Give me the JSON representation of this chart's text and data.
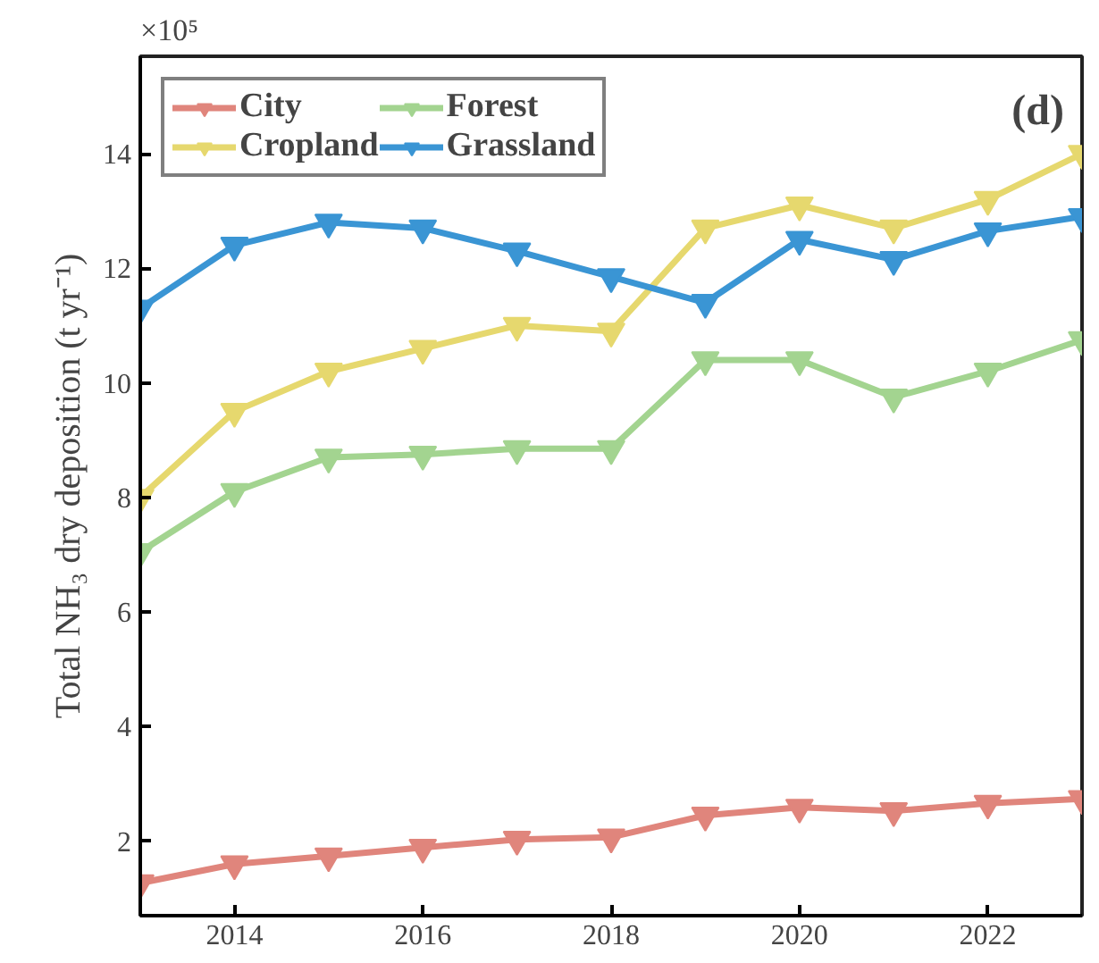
{
  "chart_data": {
    "type": "line",
    "ylabel": "Total NH₃ dry deposition (t yr⁻¹)",
    "annotations": [
      "×10⁵",
      "(d)"
    ],
    "x": [
      2013,
      2014,
      2015,
      2016,
      2017,
      2018,
      2019,
      2020,
      2021,
      2022,
      2023
    ],
    "series": [
      {
        "name": "City",
        "color": "#e0857c",
        "values": [
          1.27,
          1.6,
          1.74,
          1.89,
          2.03,
          2.07,
          2.45,
          2.59,
          2.53,
          2.66,
          2.74
        ]
      },
      {
        "name": "Forest",
        "color": "#a3d490",
        "values": [
          7.05,
          8.1,
          8.7,
          8.75,
          8.85,
          8.85,
          10.4,
          10.4,
          9.75,
          10.2,
          10.75
        ]
      },
      {
        "name": "Cropland",
        "color": "#e6d86e",
        "values": [
          8.0,
          9.5,
          10.2,
          10.6,
          11.0,
          10.9,
          12.7,
          13.1,
          12.7,
          13.2,
          14.0
        ]
      },
      {
        "name": "Grassland",
        "color": "#3a95d4",
        "values": [
          11.3,
          12.4,
          12.8,
          12.7,
          12.3,
          11.85,
          11.4,
          12.5,
          12.15,
          12.65,
          12.9
        ]
      }
    ],
    "xlim": [
      2013,
      2023
    ],
    "ylim": [
      0.7,
      15.7
    ],
    "xticks": [
      2014,
      2016,
      2018,
      2020,
      2022
    ],
    "yticks": [
      2,
      4,
      6,
      8,
      10,
      12,
      14
    ],
    "grid": false,
    "legend": "top left",
    "marker": "triangle",
    "line_style": "solid"
  }
}
